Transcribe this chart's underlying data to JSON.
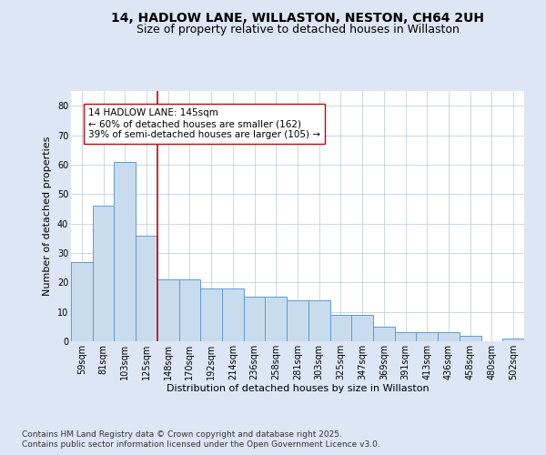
{
  "title": "14, HADLOW LANE, WILLASTON, NESTON, CH64 2UH",
  "subtitle": "Size of property relative to detached houses in Willaston",
  "xlabel": "Distribution of detached houses by size in Willaston",
  "ylabel": "Number of detached properties",
  "categories": [
    "59sqm",
    "81sqm",
    "103sqm",
    "125sqm",
    "148sqm",
    "170sqm",
    "192sqm",
    "214sqm",
    "236sqm",
    "258sqm",
    "281sqm",
    "303sqm",
    "325sqm",
    "347sqm",
    "369sqm",
    "391sqm",
    "413sqm",
    "436sqm",
    "458sqm",
    "480sqm",
    "502sqm"
  ],
  "values": [
    27,
    46,
    61,
    36,
    21,
    21,
    18,
    18,
    15,
    15,
    14,
    14,
    9,
    9,
    5,
    3,
    3,
    3,
    2,
    0,
    1
  ],
  "bar_color": "#c9dcee",
  "bar_edge_color": "#5b9bd5",
  "background_color": "#dce6f5",
  "plot_bg_color": "#ffffff",
  "grid_color": "#b8c8dc",
  "ref_line_x": 3.5,
  "ref_line_label": "14 HADLOW LANE: 145sqm",
  "ref_line_pct1": "← 60% of detached houses are smaller (162)",
  "ref_line_pct2": "39% of semi-detached houses are larger (105) →",
  "ref_line_color": "#cc0000",
  "annotation_box_color": "#cc0000",
  "footer1": "Contains HM Land Registry data © Crown copyright and database right 2025.",
  "footer2": "Contains public sector information licensed under the Open Government Licence v3.0.",
  "ylim": [
    0,
    85
  ],
  "yticks": [
    0,
    10,
    20,
    30,
    40,
    50,
    60,
    70,
    80
  ],
  "title_fontsize": 10,
  "subtitle_fontsize": 9,
  "axis_label_fontsize": 8,
  "tick_fontsize": 7,
  "annotation_fontsize": 7.5,
  "footer_fontsize": 6.5
}
